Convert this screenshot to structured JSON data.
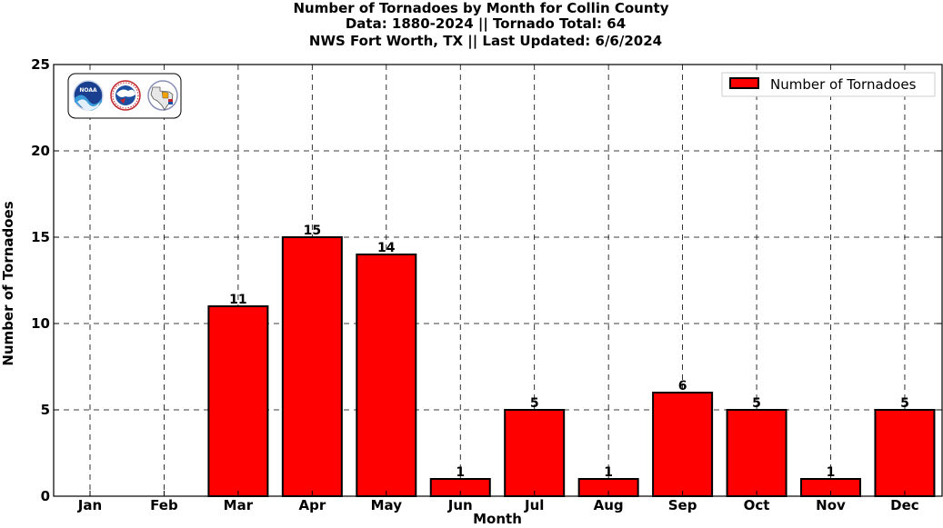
{
  "chart_data": {
    "type": "bar",
    "title_lines": [
      "Number of Tornadoes by Month for Collin County",
      "Data: 1880-2024 || Tornado Total: 64",
      "NWS Fort Worth, TX || Last Updated: 6/6/2024"
    ],
    "xlabel": "Month",
    "ylabel": "Number of Tornadoes",
    "categories": [
      "Jan",
      "Feb",
      "Mar",
      "Apr",
      "May",
      "Jun",
      "Jul",
      "Aug",
      "Sep",
      "Oct",
      "Nov",
      "Dec"
    ],
    "series": [
      {
        "name": "Number of Tornadoes",
        "values": [
          0,
          0,
          11,
          15,
          14,
          1,
          5,
          1,
          6,
          5,
          1,
          5
        ],
        "data_labels": [
          "",
          "",
          "11",
          "15",
          "14",
          "1",
          "5",
          "1",
          "6",
          "5",
          "1",
          "5"
        ],
        "color": "#ff0000"
      }
    ],
    "ylim": [
      0,
      25
    ],
    "yticks": [
      0,
      5,
      10,
      15,
      20,
      25
    ],
    "grid": true,
    "legend_position": "top-right",
    "colors": {
      "bar_fill": "#ff0000",
      "bar_edge": "#000000",
      "grid": "#000000"
    }
  },
  "logos": [
    "noaa-logo",
    "national-weather-service-logo",
    "texas-map-logo"
  ]
}
